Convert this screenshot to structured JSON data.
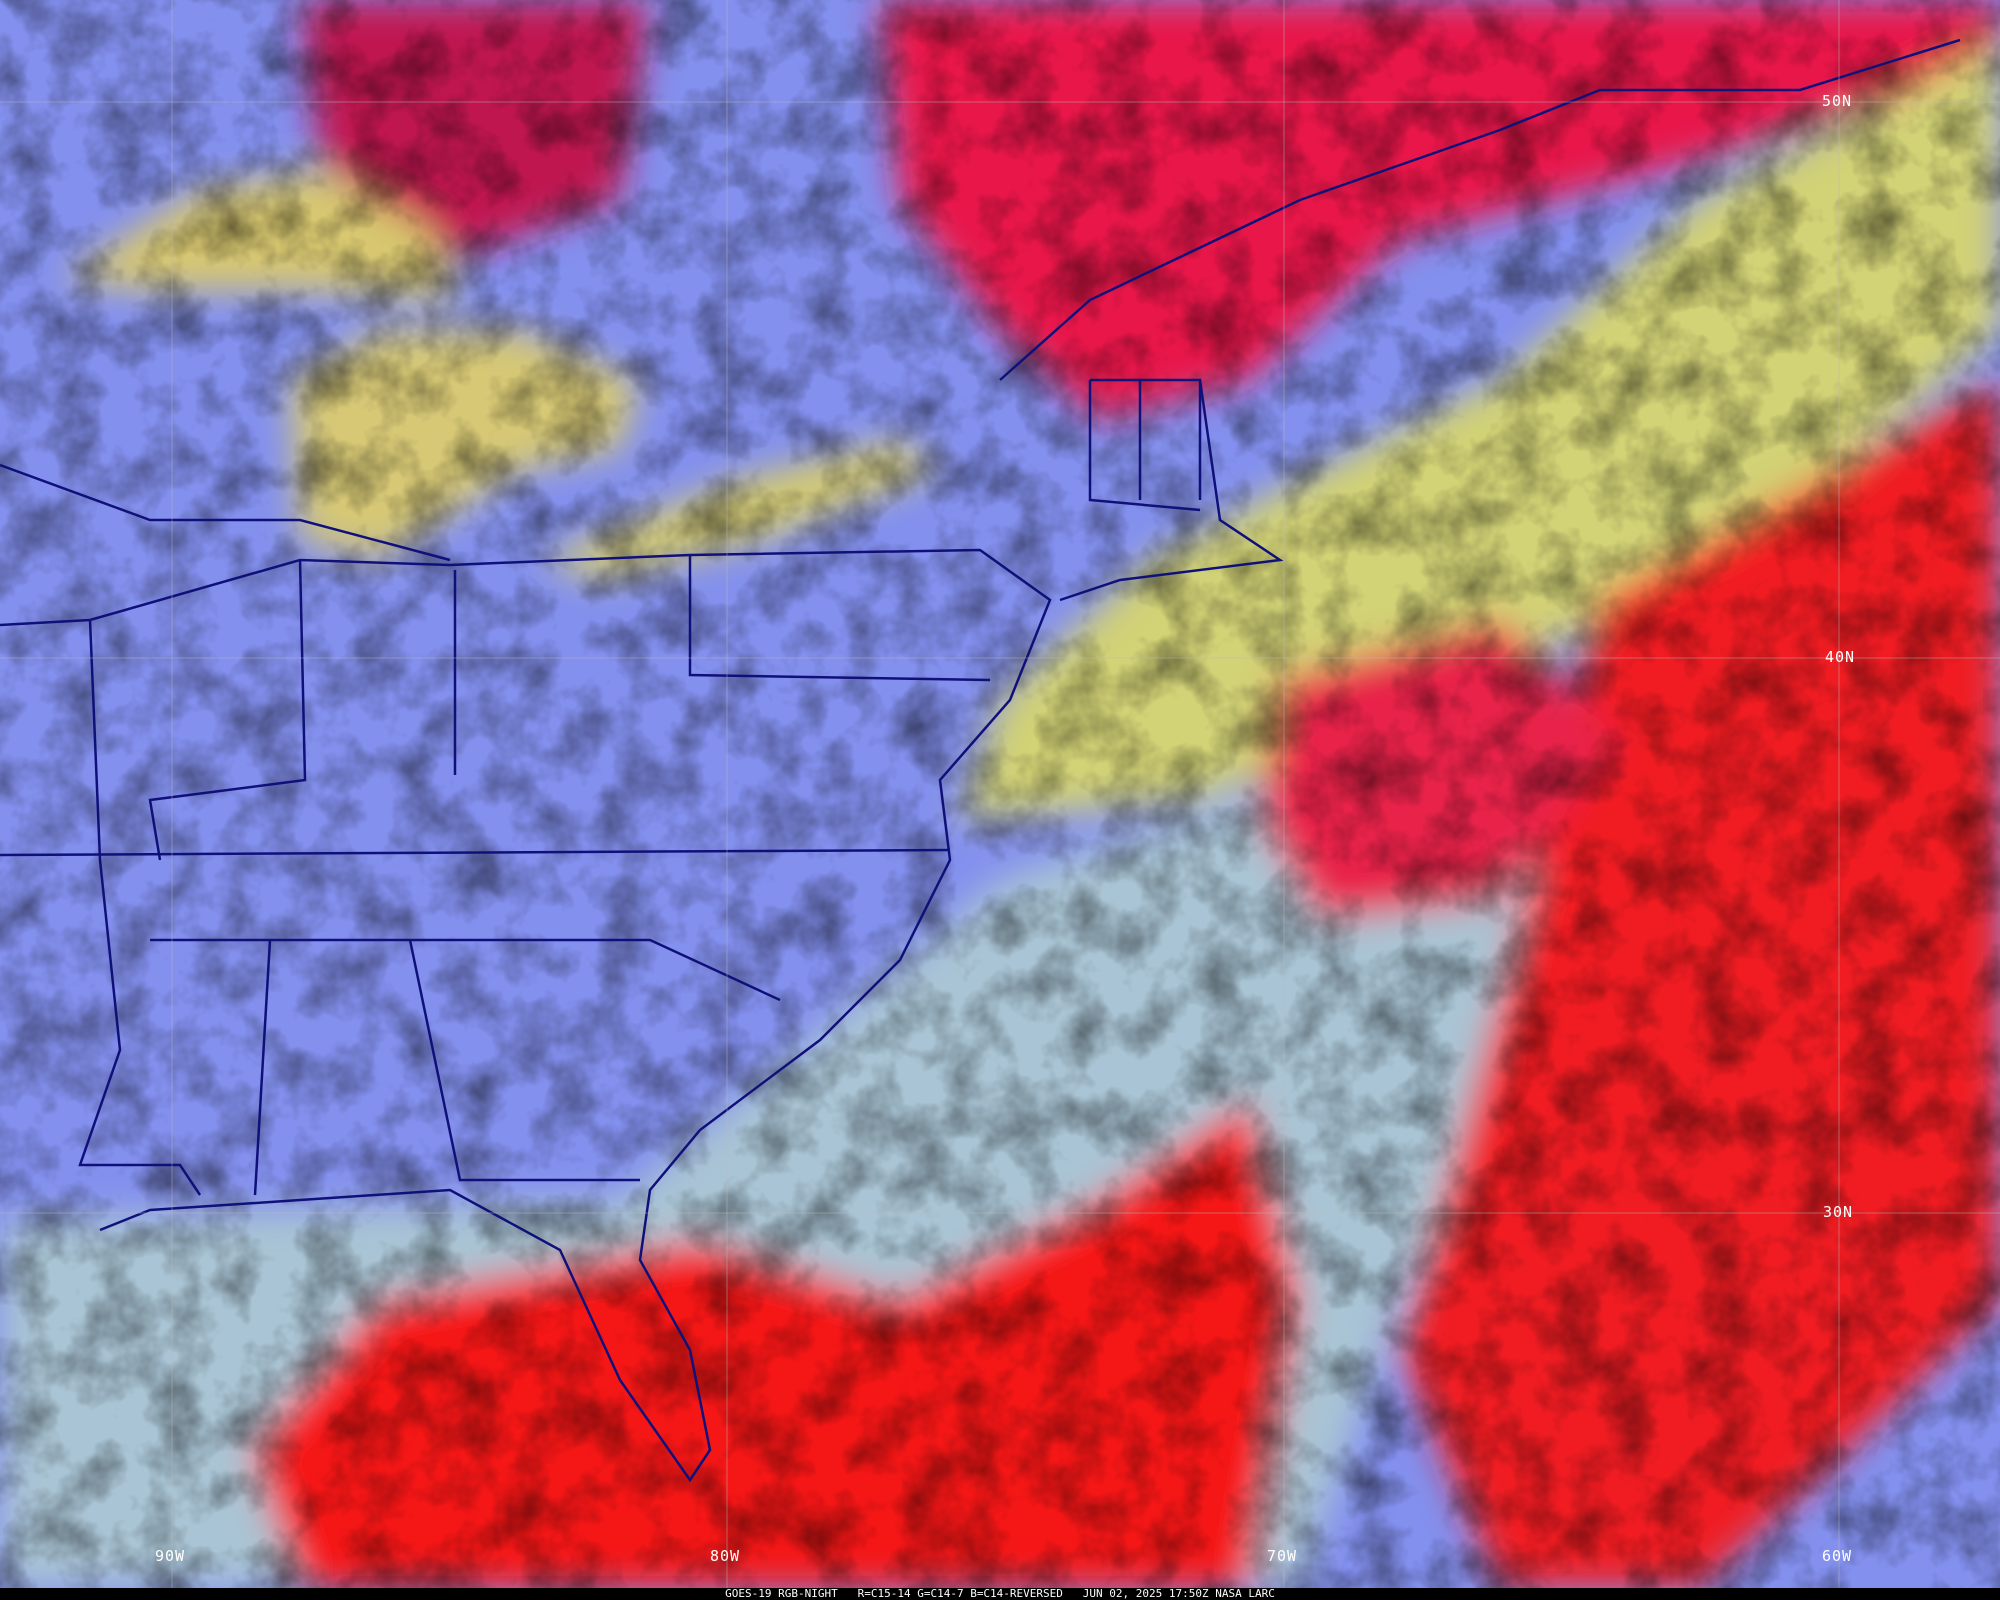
{
  "image": {
    "caption": "GOES-19 RGB-NIGHT   R=C15-14 G=C14-7 B=C14-REVERSED   JUN 02, 2025 17:50Z NASA LARC",
    "latitude_labels": [
      "50N",
      "40N",
      "30N"
    ],
    "longitude_labels": [
      "90W",
      "80W",
      "70W",
      "60W"
    ],
    "colors": {
      "land_clear": "#7f8ff0",
      "low_cloud_yellow": "#d8d070",
      "high_cloud_red": "#f01030",
      "ocean_cyan": "#a8c8d8",
      "boundaries": "#10107a"
    }
  }
}
